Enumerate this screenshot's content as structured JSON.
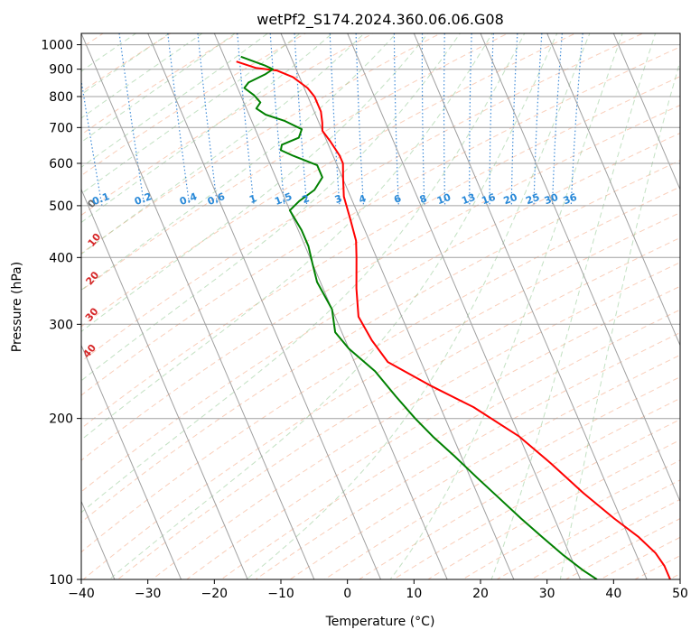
{
  "chart_data": {
    "type": "line",
    "title": "wetPf2_S174.2024.360.06.06.G08",
    "xlabel": "Temperature (°C)",
    "ylabel": "Pressure (hPa)",
    "xlim": [
      -40,
      50
    ],
    "ylim": [
      1050,
      100
    ],
    "y_scale": "log",
    "grid": true,
    "x_ticks": [
      -40,
      -30,
      -20,
      -10,
      0,
      10,
      20,
      30,
      40,
      50
    ],
    "x_tick_labels": [
      "−40",
      "−30",
      "−20",
      "−10",
      "0",
      "10",
      "20",
      "30",
      "40",
      "50"
    ],
    "y_ticks": [
      100,
      200,
      300,
      400,
      500,
      600,
      700,
      800,
      900,
      1000
    ],
    "y_tick_labels": [
      "100",
      "200",
      "300",
      "400",
      "500",
      "600",
      "700",
      "800",
      "900",
      "1000"
    ],
    "series": [
      {
        "color": "#ff0000",
        "points": [
          [
            -18.5,
            930
          ],
          [
            -16,
            905
          ],
          [
            -13,
            895
          ],
          [
            -11,
            870
          ],
          [
            -9.5,
            830
          ],
          [
            -9,
            800
          ],
          [
            -9,
            750
          ],
          [
            -9.5,
            715
          ],
          [
            -10,
            690
          ],
          [
            -9.5,
            660
          ],
          [
            -9,
            620
          ],
          [
            -9,
            600
          ],
          [
            -10,
            560
          ],
          [
            -11,
            520
          ],
          [
            -11.5,
            470
          ],
          [
            -12,
            430
          ],
          [
            -13,
            400
          ],
          [
            -15,
            350
          ],
          [
            -16.5,
            310
          ],
          [
            -16,
            280
          ],
          [
            -15,
            255
          ],
          [
            -10,
            230
          ],
          [
            -5,
            210
          ],
          [
            0,
            185
          ],
          [
            3,
            165
          ],
          [
            6,
            145
          ],
          [
            9,
            130
          ],
          [
            11.5,
            120
          ],
          [
            13,
            112
          ],
          [
            13.5,
            106
          ],
          [
            13.5,
            100
          ]
        ]
      },
      {
        "color": "#008000",
        "points": [
          [
            -17.5,
            950
          ],
          [
            -14.5,
            915
          ],
          [
            -13.5,
            900
          ],
          [
            -15,
            880
          ],
          [
            -18,
            850
          ],
          [
            -19,
            830
          ],
          [
            -18,
            805
          ],
          [
            -17.5,
            780
          ],
          [
            -18.5,
            760
          ],
          [
            -17.5,
            740
          ],
          [
            -15,
            720
          ],
          [
            -13,
            695
          ],
          [
            -14,
            670
          ],
          [
            -17,
            650
          ],
          [
            -17.5,
            635
          ],
          [
            -16,
            620
          ],
          [
            -13,
            595
          ],
          [
            -13,
            565
          ],
          [
            -15,
            535
          ],
          [
            -18,
            510
          ],
          [
            -20,
            490
          ],
          [
            -19.5,
            450
          ],
          [
            -19.5,
            420
          ],
          [
            -20,
            390
          ],
          [
            -20.5,
            360
          ],
          [
            -20,
            320
          ],
          [
            -21,
            290
          ],
          [
            -20,
            270
          ],
          [
            -17.5,
            245
          ],
          [
            -16,
            220
          ],
          [
            -14.5,
            200
          ],
          [
            -13,
            185
          ],
          [
            -11,
            170
          ],
          [
            -9,
            155
          ],
          [
            -7,
            142
          ],
          [
            -5,
            130
          ],
          [
            -3,
            120
          ],
          [
            -1,
            111
          ],
          [
            1,
            104
          ],
          [
            2.5,
            100
          ]
        ]
      }
    ],
    "annotations": {
      "dry_adiabats_c": [
        -100,
        -90,
        -80,
        -70,
        -60,
        -50,
        -40,
        -30,
        -20,
        -10,
        0,
        10,
        20,
        30,
        40
      ],
      "mixing_ratios_g_kg": [
        "0.1",
        "0.2",
        "0.4",
        "0.6",
        "1",
        "1.5",
        "2",
        "3",
        "4",
        "6",
        "8",
        "10",
        "13",
        "16",
        "20",
        "25",
        "30",
        "36"
      ]
    }
  }
}
